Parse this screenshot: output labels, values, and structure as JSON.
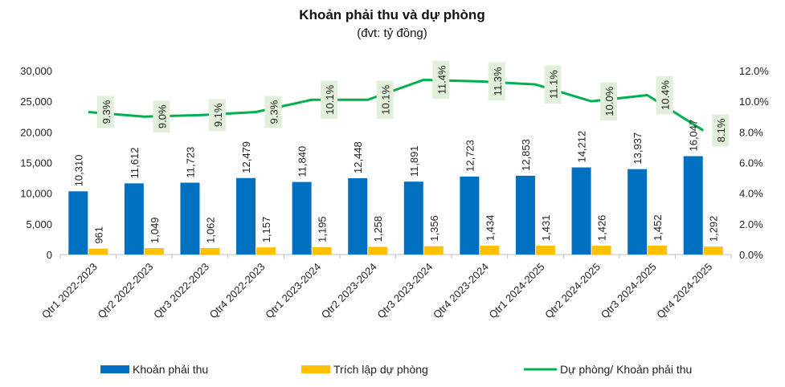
{
  "chart_data": {
    "type": "bar",
    "title": "Khoản phải thu và dự phòng",
    "subtitle": "(đvt: tỷ đồng)",
    "categories": [
      "Qtr1 2022-2023",
      "Qtr2 2022-2023",
      "Qtr3 2022-2023",
      "Qtr4 2022-2023",
      "Qtr1 2023-2024",
      "Qtr2 2023-2024",
      "Qtr3 2023-2024",
      "Qtr4 2023-2024",
      "Qtr1 2024-2025",
      "Qtr2 2024-2025",
      "Qtr3 2024-2025",
      "Qtr4 2024-2025"
    ],
    "series": [
      {
        "name": "Khoản phải thu",
        "kind": "bar",
        "axis": "left",
        "color": "#0070C0",
        "values": [
          10310,
          11612,
          11723,
          12479,
          11840,
          12448,
          11891,
          12723,
          12853,
          14212,
          13937,
          16047
        ],
        "labels": [
          "10,310",
          "11,612",
          "11,723",
          "12,479",
          "11,840",
          "12,448",
          "11,891",
          "12,723",
          "12,853",
          "14,212",
          "13,937",
          "16,047"
        ]
      },
      {
        "name": "Trích lập dự phòng",
        "kind": "bar",
        "axis": "left",
        "color": "#FFC000",
        "values": [
          961,
          1049,
          1062,
          1157,
          1195,
          1258,
          1356,
          1434,
          1431,
          1426,
          1452,
          1292
        ],
        "labels": [
          "961",
          "1,049",
          "1,062",
          "1,157",
          "1,195",
          "1,258",
          "1,356",
          "1,434",
          "1,431",
          "1,426",
          "1,452",
          "1,292"
        ]
      },
      {
        "name": "Dự phòng/ Khoản phải thu",
        "kind": "line",
        "axis": "right",
        "color": "#00B050",
        "values": [
          9.3,
          9.0,
          9.1,
          9.3,
          10.1,
          10.1,
          11.4,
          11.3,
          11.1,
          10.0,
          10.4,
          8.1
        ],
        "labels": [
          "9.3%",
          "9.0%",
          "9.1%",
          "9.3%",
          "10.1%",
          "10.1%",
          "11.4%",
          "11.3%",
          "11.1%",
          "10.0%",
          "10.4%",
          "8.1%"
        ]
      }
    ],
    "y_left": {
      "min": 0,
      "max": 30000,
      "ticks": [
        "0",
        "5,000",
        "10,000",
        "15,000",
        "20,000",
        "25,000",
        "30,000"
      ]
    },
    "y_right": {
      "min": 0,
      "max": 12,
      "ticks": [
        "0.0%",
        "2.0%",
        "4.0%",
        "6.0%",
        "8.0%",
        "10.0%",
        "12.0%"
      ]
    },
    "grid": false,
    "legend_position": "bottom",
    "label_box_color": "#E2EFDA"
  }
}
